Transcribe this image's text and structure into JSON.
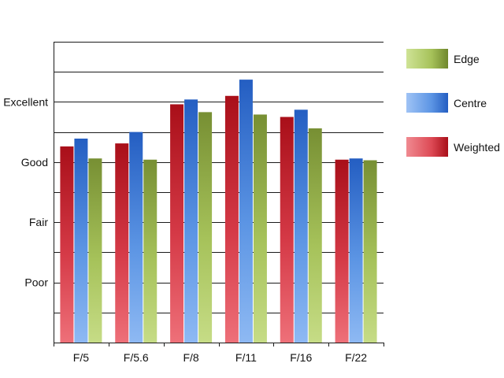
{
  "chart_data": {
    "type": "bar",
    "categories": [
      "F/5",
      "F/5.6",
      "F/8",
      "F/11",
      "F/16",
      "F/22"
    ],
    "y_tick_labels": [
      {
        "value": 1,
        "label": "Poor"
      },
      {
        "value": 2,
        "label": "Fair"
      },
      {
        "value": 3,
        "label": "Good"
      },
      {
        "value": 4,
        "label": "Excellent"
      }
    ],
    "ylim": [
      0,
      5
    ],
    "grid_step": 0.5,
    "grid": true,
    "legend_position": "right",
    "series": [
      {
        "name": "Weighted",
        "values": [
          3.26,
          3.31,
          3.96,
          4.1,
          3.75,
          3.04
        ],
        "color": "#c0141e"
      },
      {
        "name": "Centre",
        "values": [
          3.39,
          3.5,
          4.04,
          4.37,
          3.87,
          3.06
        ],
        "color": "#2a66c8"
      },
      {
        "name": "Edge",
        "values": [
          3.06,
          3.04,
          3.83,
          3.79,
          3.56,
          3.03
        ],
        "color": "#7e9a32"
      }
    ],
    "legend_order": [
      "Edge",
      "Centre",
      "Weighted"
    ]
  }
}
